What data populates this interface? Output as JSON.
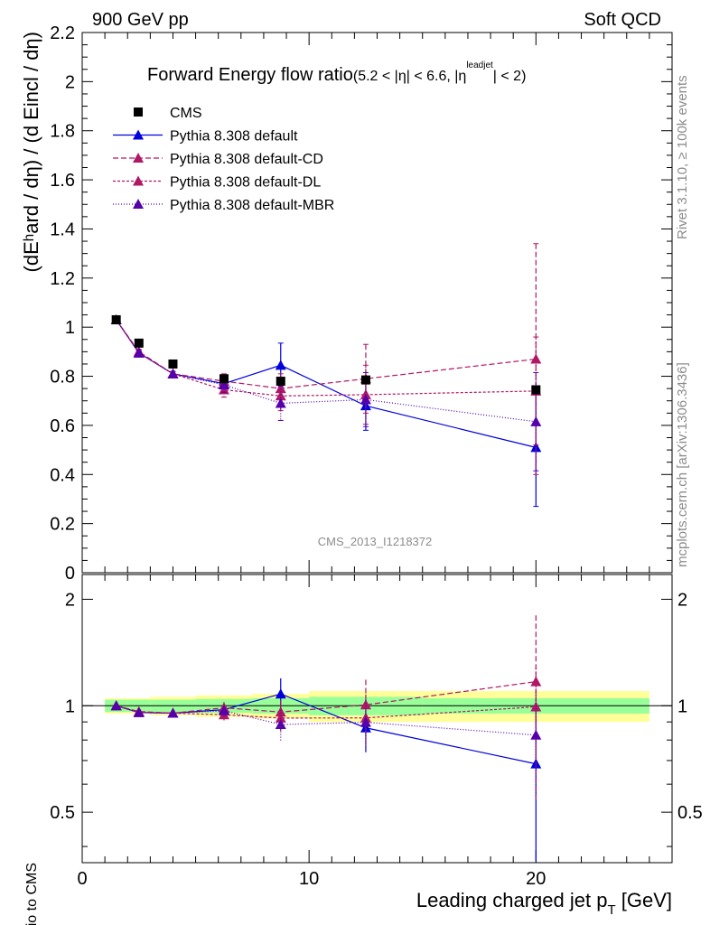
{
  "header": {
    "left": "900 GeV pp",
    "right": "Soft QCD"
  },
  "side": {
    "rivet": "Rivet 3.1.10, ≥ 100k events",
    "mcplots": "mcplots.cern.ch [arXiv:1306.3436]"
  },
  "chart_data": {
    "type": "scatter",
    "title": "Forward Energy flow ratio",
    "title_cut": "(5.2 < |η| < 6.6, |η",
    "title_cut_sup": "leadjet",
    "title_cut_end": "| < 2)",
    "watermark": "CMS_2013_I1218372",
    "ylabel": "(dEʰard / dη) / (d Eincl / dη)",
    "ylabel_ratio": "Ratio to CMS",
    "xlabel": "Leading charged jet p",
    "xlabel_sub": "T",
    "xlabel_unit": " [GeV]",
    "xlim": [
      0,
      26
    ],
    "ylim": [
      0,
      2.2
    ],
    "ratio_ylim": [
      0.36,
      2.35
    ],
    "ratio_log": true,
    "x_ticks": [
      "0",
      "10",
      "20"
    ],
    "y_ticks": [
      "0",
      "0.2",
      "0.4",
      "0.6",
      "0.8",
      "1",
      "1.2",
      "1.4",
      "1.6",
      "1.8",
      "2",
      "2.2"
    ],
    "ratio_ticks": [
      "0.5",
      "1",
      "2"
    ],
    "legend_position": "top-left",
    "x": [
      1.5,
      2.5,
      4.0,
      6.25,
      8.75,
      12.5,
      20.0
    ],
    "x_bins": [
      [
        1,
        2
      ],
      [
        2,
        3
      ],
      [
        3,
        5
      ],
      [
        5,
        7.5
      ],
      [
        7.5,
        10
      ],
      [
        10,
        15
      ],
      [
        15,
        25
      ]
    ],
    "data": {
      "name": "CMS",
      "color": "#000000",
      "values": [
        1.03,
        0.935,
        0.85,
        0.79,
        0.78,
        0.785,
        0.745
      ],
      "ratio_band_inner": [
        0.04,
        0.04,
        0.04,
        0.045,
        0.05,
        0.06,
        0.05
      ],
      "ratio_band_outer": [
        0.05,
        0.05,
        0.06,
        0.07,
        0.08,
        0.1,
        0.1
      ]
    },
    "series": [
      {
        "name": "Pythia 8.308 default",
        "color": "#0000dd",
        "dash": "",
        "values": [
          1.03,
          0.895,
          0.81,
          0.77,
          0.845,
          0.68,
          0.51
        ],
        "errors": [
          0.01,
          0.01,
          0.01,
          0.02,
          0.09,
          0.1,
          0.24
        ],
        "ratio": [
          1.0,
          0.957,
          0.953,
          0.975,
          1.08,
          0.866,
          0.685
        ]
      },
      {
        "name": "Pythia 8.308 default-CD",
        "color": "#b01866",
        "dash": "6,3",
        "values": [
          1.03,
          0.9,
          0.81,
          0.78,
          0.75,
          0.79,
          0.87
        ],
        "errors": [
          0.01,
          0.01,
          0.01,
          0.03,
          0.06,
          0.14,
          0.47
        ],
        "ratio": [
          1.0,
          0.963,
          0.953,
          0.987,
          0.96,
          1.006,
          1.17
        ]
      },
      {
        "name": "Pythia 8.308 default-DL",
        "color": "#b01866",
        "dash": "3,2",
        "values": [
          1.03,
          0.895,
          0.81,
          0.745,
          0.72,
          0.725,
          0.74
        ],
        "errors": [
          0.01,
          0.01,
          0.01,
          0.03,
          0.06,
          0.12,
          0.22
        ],
        "ratio": [
          1.0,
          0.957,
          0.953,
          0.943,
          0.923,
          0.924,
          0.993
        ]
      },
      {
        "name": "Pythia 8.308 default-MBR",
        "color": "#5500aa",
        "dash": "1,2",
        "values": [
          1.03,
          0.895,
          0.81,
          0.765,
          0.69,
          0.705,
          0.615
        ],
        "errors": [
          0.01,
          0.01,
          0.01,
          0.03,
          0.07,
          0.11,
          0.2
        ],
        "ratio": [
          1.0,
          0.957,
          0.953,
          0.968,
          0.885,
          0.898,
          0.826
        ]
      }
    ]
  }
}
